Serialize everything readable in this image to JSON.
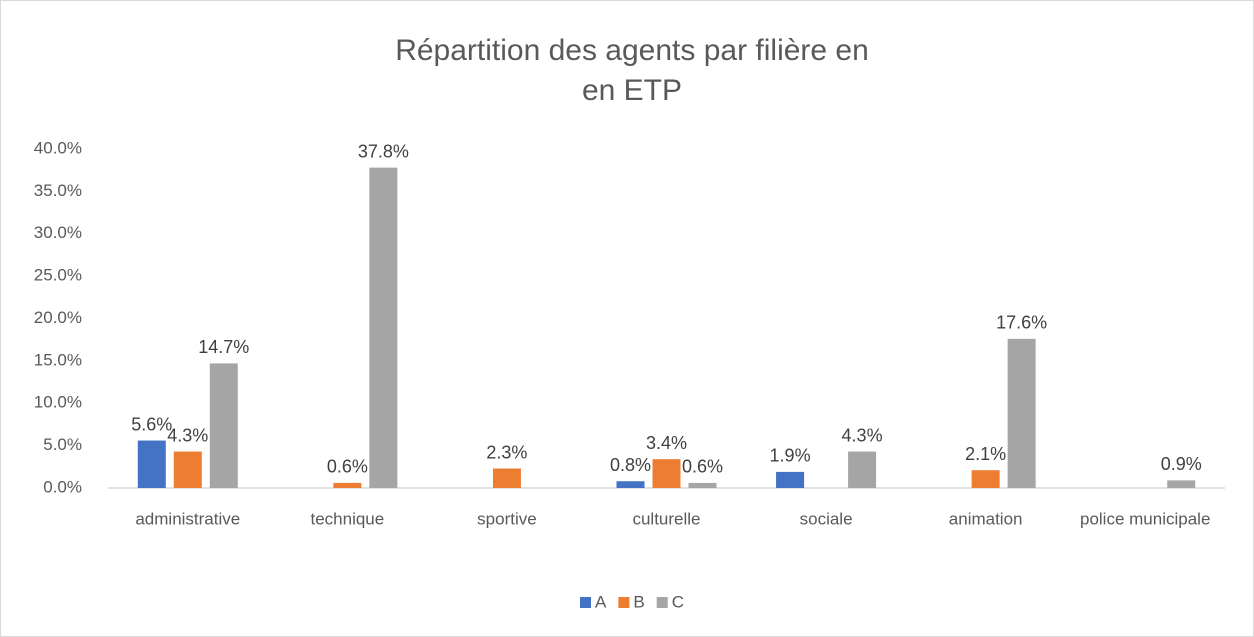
{
  "chart_data": {
    "type": "bar",
    "title": [
      "Répartition des agents par filière en",
      "en ETP"
    ],
    "categories": [
      "administrative",
      "technique",
      "sportive",
      "culturelle",
      "sociale",
      "animation",
      "police municipale"
    ],
    "series": [
      {
        "name": "A",
        "color": "#4472c4",
        "values": [
          5.6,
          null,
          null,
          0.8,
          1.9,
          null,
          null
        ],
        "value_labels": [
          "5.6%",
          null,
          null,
          "0.8%",
          "1.9%",
          null,
          null
        ]
      },
      {
        "name": "B",
        "color": "#ed7d31",
        "values": [
          4.3,
          0.6,
          2.3,
          3.4,
          null,
          2.1,
          null
        ],
        "value_labels": [
          "4.3%",
          "0.6%",
          "2.3%",
          "3.4%",
          null,
          "2.1%",
          null
        ]
      },
      {
        "name": "C",
        "color": "#a5a5a5",
        "values": [
          14.7,
          37.8,
          null,
          0.6,
          4.3,
          17.6,
          0.9
        ],
        "value_labels": [
          "14.7%",
          "37.8%",
          null,
          "0.6%",
          "4.3%",
          "17.6%",
          "0.9%"
        ]
      }
    ],
    "ylim": [
      0,
      40
    ],
    "yticks": [
      {
        "value": 0,
        "label": "0.0%"
      },
      {
        "value": 5,
        "label": "5.0%"
      },
      {
        "value": 10,
        "label": "10.0%"
      },
      {
        "value": 15,
        "label": "15.0%"
      },
      {
        "value": 20,
        "label": "20.0%"
      },
      {
        "value": 25,
        "label": "25.0%"
      },
      {
        "value": 30,
        "label": "30.0%"
      },
      {
        "value": 35,
        "label": "35.0%"
      },
      {
        "value": 40,
        "label": "40.0%"
      }
    ],
    "grid": false,
    "legend": "bottom"
  }
}
